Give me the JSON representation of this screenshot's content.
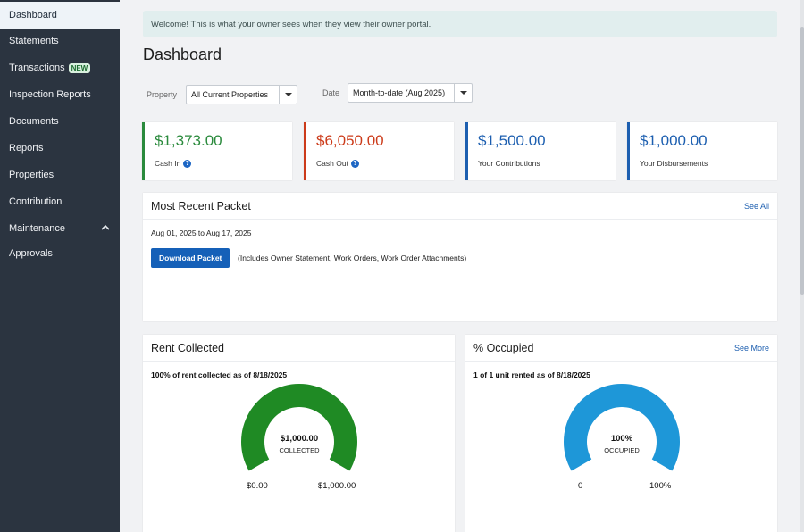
{
  "sidebar": {
    "items": [
      {
        "label": "Dashboard",
        "active": true
      },
      {
        "label": "Statements"
      },
      {
        "label": "Transactions",
        "badge": "NEW"
      },
      {
        "label": "Inspection Reports"
      },
      {
        "label": "Documents"
      },
      {
        "label": "Reports"
      },
      {
        "label": "Properties"
      },
      {
        "label": "Contribution"
      },
      {
        "label": "Maintenance",
        "expanded": true
      },
      {
        "label": "Approvals"
      }
    ]
  },
  "welcome": "Welcome! This is what your owner sees when they view their owner portal.",
  "page_title": "Dashboard",
  "filters": {
    "property_label": "Property",
    "property_value": "All Current Properties",
    "date_label": "Date",
    "date_value": "Month-to-date (Aug 2025)"
  },
  "stats": [
    {
      "value": "$1,373.00",
      "label": "Cash In",
      "color": "#2a8a3c",
      "help": true
    },
    {
      "value": "$6,050.00",
      "label": "Cash Out",
      "color": "#cc3b1a",
      "help": true
    },
    {
      "value": "$1,500.00",
      "label": "Your Contributions",
      "color": "#1d5fb0"
    },
    {
      "value": "$1,000.00",
      "label": "Your Disbursements",
      "color": "#1d5fb0"
    }
  ],
  "packet": {
    "title": "Most Recent Packet",
    "link": "See All",
    "date_range": "Aug 01, 2025 to Aug 17, 2025",
    "button": "Download Packet",
    "note": "(Includes Owner Statement, Work Orders, Work Order Attachments)"
  },
  "rent": {
    "title": "Rent Collected",
    "caption": "100% of rent collected as of 8/18/2025",
    "center_value": "$1,000.00",
    "center_label": "COLLECTED",
    "min_label": "$0.00",
    "max_label": "$1,000.00",
    "fraction": 1.0,
    "color": "#1f8a24"
  },
  "occupied": {
    "title": "% Occupied",
    "link": "See More",
    "caption": "1 of 1 unit rented as of 8/18/2025",
    "center_value": "100%",
    "center_label": "OCCUPIED",
    "min_label": "0",
    "max_label": "100%",
    "fraction": 1.0,
    "color": "#1e97d8"
  }
}
